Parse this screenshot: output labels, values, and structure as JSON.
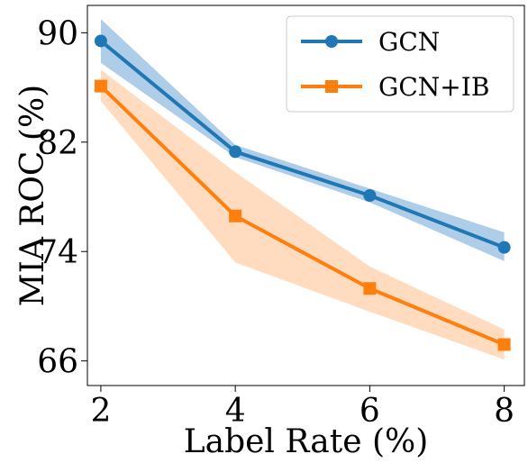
{
  "chart_data": {
    "type": "line",
    "xlabel": "Label Rate (%)",
    "ylabel": "MIA ROC (%)",
    "x": [
      2,
      4,
      6,
      8
    ],
    "xticks": [
      2,
      4,
      6,
      8
    ],
    "yticks": [
      66,
      74,
      82,
      90
    ],
    "xlim": [
      1.8,
      8.3
    ],
    "ylim": [
      64.2,
      92.0
    ],
    "grid": false,
    "legend": "top-right",
    "series": [
      {
        "name": "GCN",
        "color": "#1f77b4",
        "band_color": "#aecde8",
        "marker": "circle",
        "values": [
          89.4,
          81.3,
          78.1,
          74.3
        ],
        "upper": [
          91.0,
          81.8,
          78.6,
          75.4
        ],
        "lower": [
          87.8,
          80.9,
          77.6,
          73.3
        ]
      },
      {
        "name": "GCN+IB",
        "color": "#ff7f0e",
        "band_color": "#ffdcbf",
        "marker": "square",
        "values": [
          86.1,
          76.6,
          71.3,
          67.2
        ],
        "upper": [
          87.3,
          79.8,
          72.9,
          68.3
        ],
        "lower": [
          85.0,
          73.2,
          69.6,
          66.1
        ]
      }
    ]
  }
}
